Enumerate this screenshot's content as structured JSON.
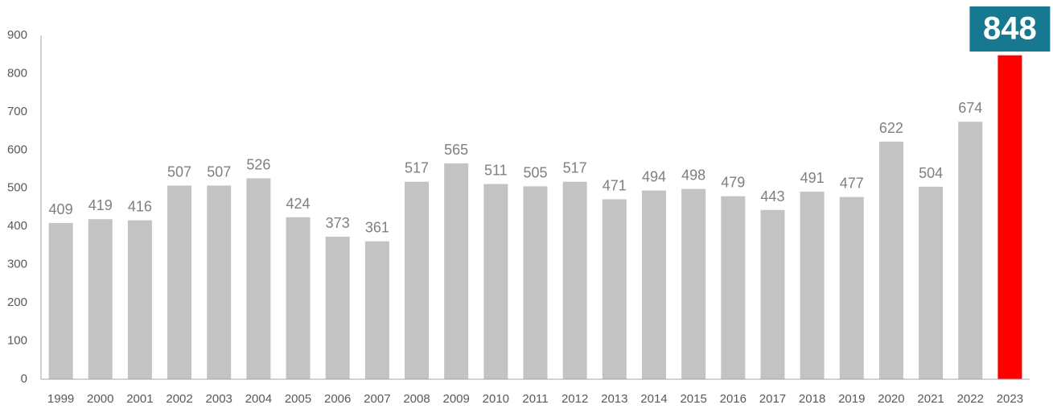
{
  "chart_data": {
    "type": "bar",
    "categories": [
      "1999",
      "2000",
      "2001",
      "2002",
      "2003",
      "2004",
      "2005",
      "2006",
      "2007",
      "2008",
      "2009",
      "2010",
      "2011",
      "2012",
      "2013",
      "2014",
      "2015",
      "2016",
      "2017",
      "2018",
      "2019",
      "2020",
      "2021",
      "2022",
      "2023"
    ],
    "values": [
      409,
      419,
      416,
      507,
      507,
      526,
      424,
      373,
      361,
      517,
      565,
      511,
      505,
      517,
      471,
      494,
      498,
      479,
      443,
      491,
      477,
      622,
      504,
      674,
      848
    ],
    "title": "",
    "xlabel": "",
    "ylabel": "",
    "ylim": [
      0,
      900
    ],
    "yticks": [
      0,
      100,
      200,
      300,
      400,
      500,
      600,
      700,
      800,
      900
    ],
    "grid": false,
    "legend": "none",
    "colors": {
      "bar": "#c3c3c3",
      "highlight_bar": "#ff0000",
      "callout_bg": "#17798f",
      "callout_text": "#ffffff",
      "axis": "#a6a6a6",
      "tick_text": "#595959",
      "data_label_text": "#7f7f7f"
    },
    "highlight": {
      "category": "2023",
      "label": "848"
    }
  }
}
